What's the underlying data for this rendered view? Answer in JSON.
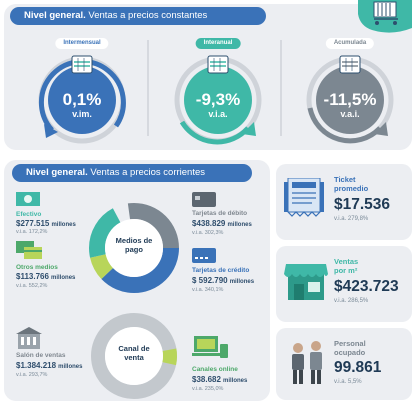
{
  "top": {
    "header_bold": "Nivel general.",
    "header_rest": " Ventas a precios constantes",
    "gauges": [
      {
        "label": "Intermensual",
        "value": "0,1%",
        "sub": "v.im."
      },
      {
        "label": "Interanual",
        "value": "-9,3%",
        "sub": "v.i.a."
      },
      {
        "label": "Acumulada",
        "value": "-11,5%",
        "sub": "v.a.i."
      }
    ]
  },
  "current": {
    "header_bold": "Nivel general.",
    "header_rest": " Ventas a precios corrientes",
    "payment_center": "Medios de pago",
    "channel_center": "Canal de venta",
    "efectivo": {
      "title": "Efectivo",
      "value": "$277.515",
      "unit": "millones",
      "via": "v.i.a. 172,2%"
    },
    "otros": {
      "title": "Otros medios",
      "value": "$113.766",
      "unit": "millones",
      "via": "v.i.a. 552,2%"
    },
    "debito": {
      "title": "Tarjetas de débito",
      "value": "$438.829",
      "unit": "millones",
      "via": "v.i.a. 302,3%"
    },
    "credito": {
      "title": "Tarjetas de crédito",
      "value": "$ 592.790",
      "unit": "millones",
      "via": "v.i.a. 340,1%"
    },
    "salon": {
      "title": "Salón de ventas",
      "value": "$1.384.218",
      "unit": "millones",
      "via": "v.i.a. 293,7%"
    },
    "online": {
      "title": "Canales online",
      "value": "$38.682",
      "unit": "millones",
      "via": "v.i.a. 235,0%"
    }
  },
  "cards": [
    {
      "title_line1": "Ticket",
      "title_line2": "promedio",
      "value": "$17.536",
      "via": "v.i.a. 279,8%"
    },
    {
      "title_line1": "Ventas",
      "title_line2": "por m²",
      "value": "$423.723",
      "via": "v.i.a. 286,5%"
    },
    {
      "title_line1": "Personal",
      "title_line2": "ocupado",
      "value": "99.861",
      "via": "v.i.a. 5,5%"
    }
  ],
  "colors": {
    "blue": "#3a72b8",
    "teal": "#3fb8a7",
    "grey": "#7c8791",
    "green": "#4da86a",
    "lime": "#b8d55a"
  }
}
